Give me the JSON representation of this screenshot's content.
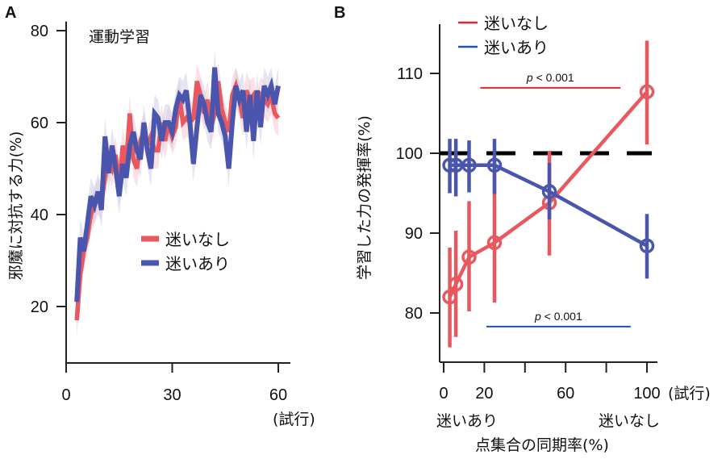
{
  "chart_data": [
    {
      "panel": "A",
      "type": "line",
      "title": "運動学習",
      "xlabel": "(試行)",
      "ylabel": "邪魔に対抗する力(%)",
      "xlim": [
        0,
        63
      ],
      "ylim": [
        8,
        82
      ],
      "xticks": [
        0,
        30,
        60
      ],
      "yticks": [
        20,
        40,
        60,
        80
      ],
      "legend": {
        "placement": "center-right",
        "entries": [
          "迷いなし",
          "迷いあり"
        ]
      },
      "x_start": 3,
      "series": [
        {
          "name": "迷いなし",
          "color": "#e8585e",
          "band_color": "#f7c9cc",
          "values": [
            17,
            27,
            32,
            35,
            40,
            42,
            44,
            43,
            48,
            52,
            50,
            53,
            46,
            55,
            51,
            62,
            52,
            50,
            56,
            58,
            55,
            57,
            54,
            54,
            60,
            56,
            60,
            57,
            59,
            66,
            60,
            61,
            60,
            61,
            69,
            66,
            62,
            65,
            59,
            62,
            69,
            63,
            60,
            58,
            66,
            68,
            65,
            61,
            67,
            65,
            66,
            62,
            66,
            65,
            64,
            66,
            62,
            61
          ]
        },
        {
          "name": "迷いあり",
          "color": "#4a55ad",
          "band_color": "#cdd0ea",
          "values": [
            21,
            35,
            32,
            38,
            44,
            42,
            45,
            41,
            57,
            49,
            55,
            50,
            44,
            51,
            48,
            55,
            58,
            54,
            52,
            60,
            54,
            50,
            62,
            61,
            56,
            60,
            60,
            58,
            63,
            66,
            65,
            67,
            60,
            51,
            59,
            66,
            64,
            60,
            58,
            72,
            62,
            60,
            57,
            50,
            60,
            68,
            65,
            67,
            58,
            66,
            56,
            67,
            59,
            68,
            66,
            68,
            64,
            68
          ]
        }
      ],
      "band_halfwidth": 4
    },
    {
      "panel": "B",
      "type": "line",
      "xlabel": "点集合の同期率(%)",
      "xunit_label": "(試行)",
      "ylabel": "学習した力の発揮率(%)",
      "xlim": [
        -2,
        105
      ],
      "ylim": [
        72,
        117
      ],
      "xticks": [
        0,
        20,
        40,
        60,
        80,
        100
      ],
      "xtick_labels": [
        "0",
        "20",
        "",
        "60",
        "",
        "100"
      ],
      "yticks": [
        80,
        90,
        100,
        110
      ],
      "x_annotations": [
        {
          "x": 0,
          "text": "迷いあり"
        },
        {
          "x": 100,
          "text": "迷いなし"
        }
      ],
      "reference_line": {
        "y": 100,
        "style": "dashed",
        "color": "#000000"
      },
      "legend": {
        "placement": "top-left",
        "entries": [
          "迷いなし",
          "迷いあり"
        ]
      },
      "series": [
        {
          "name": "迷いなし",
          "color": "#e8585e",
          "x": [
            3,
            6,
            12.5,
            25,
            52,
            100
          ],
          "y": [
            82.0,
            83.6,
            87.0,
            88.8,
            93.8,
            107.7
          ],
          "err_low": [
            75.7,
            77.0,
            80.2,
            81.3,
            87.2,
            101.1
          ],
          "err_high": [
            88.2,
            90.3,
            94.0,
            99.2,
            100.3,
            114.1
          ]
        },
        {
          "name": "迷いあり",
          "color": "#4a55ad",
          "x": [
            3,
            6,
            12.5,
            25,
            52,
            100
          ],
          "y": [
            98.5,
            98.5,
            98.5,
            98.5,
            95.2,
            88.4
          ],
          "err_low": [
            95.0,
            94.6,
            95.1,
            94.9,
            91.7,
            84.3
          ],
          "err_high": [
            101.8,
            101.8,
            101.6,
            101.8,
            98.8,
            92.4
          ]
        }
      ],
      "significance": [
        {
          "text": "p < 0.001",
          "x_range": [
            18,
            87
          ],
          "y": 108.2,
          "color": "#e8242a"
        },
        {
          "text": "p < 0.001",
          "x_range": [
            21,
            92
          ],
          "y": 78.3,
          "color": "#2050b0"
        }
      ]
    }
  ],
  "panels": {
    "a_label": "A",
    "b_label": "B"
  }
}
